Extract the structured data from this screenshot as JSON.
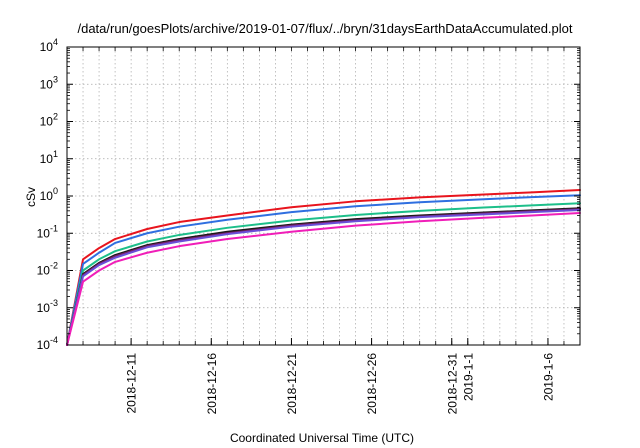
{
  "chart_data": {
    "type": "line",
    "title": "/data/run/goesPlots/archive/2019-01-07/flux/../bryn/31daysEarthDataAccumulated.plot",
    "xlabel": "Coordinated Universal Time (UTC)",
    "ylabel": "cSv",
    "y_scale": "log",
    "ylim": [
      0.0001,
      10000
    ],
    "y_ticks": [
      {
        "base": "10",
        "exp": "-4"
      },
      {
        "base": "10",
        "exp": "-3"
      },
      {
        "base": "10",
        "exp": "-2"
      },
      {
        "base": "10",
        "exp": "-1"
      },
      {
        "base": "10",
        "exp": "0"
      },
      {
        "base": "10",
        "exp": "1"
      },
      {
        "base": "10",
        "exp": "2"
      },
      {
        "base": "10",
        "exp": "3"
      },
      {
        "base": "10",
        "exp": "4"
      }
    ],
    "xlim": [
      "2018-12-07",
      "2019-01-08"
    ],
    "x_ticks": [
      {
        "label": "2018-12-11",
        "date": "2018-12-11"
      },
      {
        "label": "2018-12-16",
        "date": "2018-12-16"
      },
      {
        "label": "2018-12-21",
        "date": "2018-12-21"
      },
      {
        "label": "2018-12-26",
        "date": "2018-12-26"
      },
      {
        "label": "2018-12-31",
        "date": "2018-12-31"
      },
      {
        "label": "2019-1-1",
        "date": "2019-01-01"
      },
      {
        "label": "2019-1-6",
        "date": "2019-01-06"
      }
    ],
    "grid": true,
    "legend": "none",
    "series": [
      {
        "color": "#e8141d",
        "x": [
          "2018-12-07",
          "2018-12-08",
          "2018-12-09",
          "2018-12-10",
          "2018-12-12",
          "2018-12-14",
          "2018-12-17",
          "2018-12-21",
          "2018-12-25",
          "2018-12-29",
          "2019-01-02",
          "2019-01-05",
          "2019-01-08"
        ],
        "y": [
          0.0001,
          0.02,
          0.04,
          0.07,
          0.13,
          0.2,
          0.3,
          0.5,
          0.72,
          0.92,
          1.1,
          1.25,
          1.45
        ]
      },
      {
        "color": "#2f6fe0",
        "x": [
          "2018-12-07",
          "2018-12-08",
          "2018-12-09",
          "2018-12-10",
          "2018-12-12",
          "2018-12-14",
          "2018-12-17",
          "2018-12-21",
          "2018-12-25",
          "2018-12-29",
          "2019-01-02",
          "2019-01-05",
          "2019-01-08"
        ],
        "y": [
          0.0001,
          0.015,
          0.03,
          0.055,
          0.1,
          0.15,
          0.23,
          0.37,
          0.53,
          0.68,
          0.82,
          0.93,
          1.05
        ]
      },
      {
        "color": "#1dbf8a",
        "x": [
          "2018-12-07",
          "2018-12-08",
          "2018-12-09",
          "2018-12-10",
          "2018-12-12",
          "2018-12-14",
          "2018-12-17",
          "2018-12-21",
          "2018-12-25",
          "2018-12-29",
          "2019-01-02",
          "2019-01-05",
          "2019-01-08"
        ],
        "y": [
          0.0001,
          0.01,
          0.02,
          0.033,
          0.06,
          0.09,
          0.14,
          0.22,
          0.31,
          0.4,
          0.49,
          0.56,
          0.64
        ]
      },
      {
        "color": "#1a1a1a",
        "x": [
          "2018-12-07",
          "2018-12-08",
          "2018-12-09",
          "2018-12-10",
          "2018-12-12",
          "2018-12-14",
          "2018-12-17",
          "2018-12-21",
          "2018-12-25",
          "2018-12-29",
          "2019-01-02",
          "2019-01-05",
          "2019-01-08"
        ],
        "y": [
          0.0001,
          0.008,
          0.016,
          0.026,
          0.048,
          0.07,
          0.11,
          0.17,
          0.24,
          0.3,
          0.36,
          0.41,
          0.47
        ]
      },
      {
        "color": "#7a1f6a",
        "x": [
          "2018-12-07",
          "2018-12-08",
          "2018-12-09",
          "2018-12-10",
          "2018-12-12",
          "2018-12-14",
          "2018-12-17",
          "2018-12-21",
          "2018-12-25",
          "2018-12-29",
          "2019-01-02",
          "2019-01-05",
          "2019-01-08"
        ],
        "y": [
          0.0001,
          0.0075,
          0.015,
          0.024,
          0.045,
          0.065,
          0.1,
          0.16,
          0.22,
          0.28,
          0.34,
          0.39,
          0.44
        ]
      },
      {
        "color": "#6a4fd8",
        "x": [
          "2018-12-07",
          "2018-12-08",
          "2018-12-09",
          "2018-12-10",
          "2018-12-12",
          "2018-12-14",
          "2018-12-17",
          "2018-12-21",
          "2018-12-25",
          "2018-12-29",
          "2019-01-02",
          "2019-01-05",
          "2019-01-08"
        ],
        "y": [
          0.0001,
          0.007,
          0.014,
          0.022,
          0.042,
          0.06,
          0.095,
          0.15,
          0.21,
          0.27,
          0.32,
          0.37,
          0.42
        ]
      },
      {
        "color": "#f01eb8",
        "x": [
          "2018-12-07",
          "2018-12-08",
          "2018-12-09",
          "2018-12-10",
          "2018-12-12",
          "2018-12-14",
          "2018-12-17",
          "2018-12-21",
          "2018-12-25",
          "2018-12-29",
          "2019-01-02",
          "2019-01-05",
          "2019-01-08"
        ],
        "y": [
          0.0001,
          0.005,
          0.01,
          0.017,
          0.03,
          0.045,
          0.07,
          0.11,
          0.16,
          0.21,
          0.26,
          0.3,
          0.35
        ]
      }
    ]
  }
}
